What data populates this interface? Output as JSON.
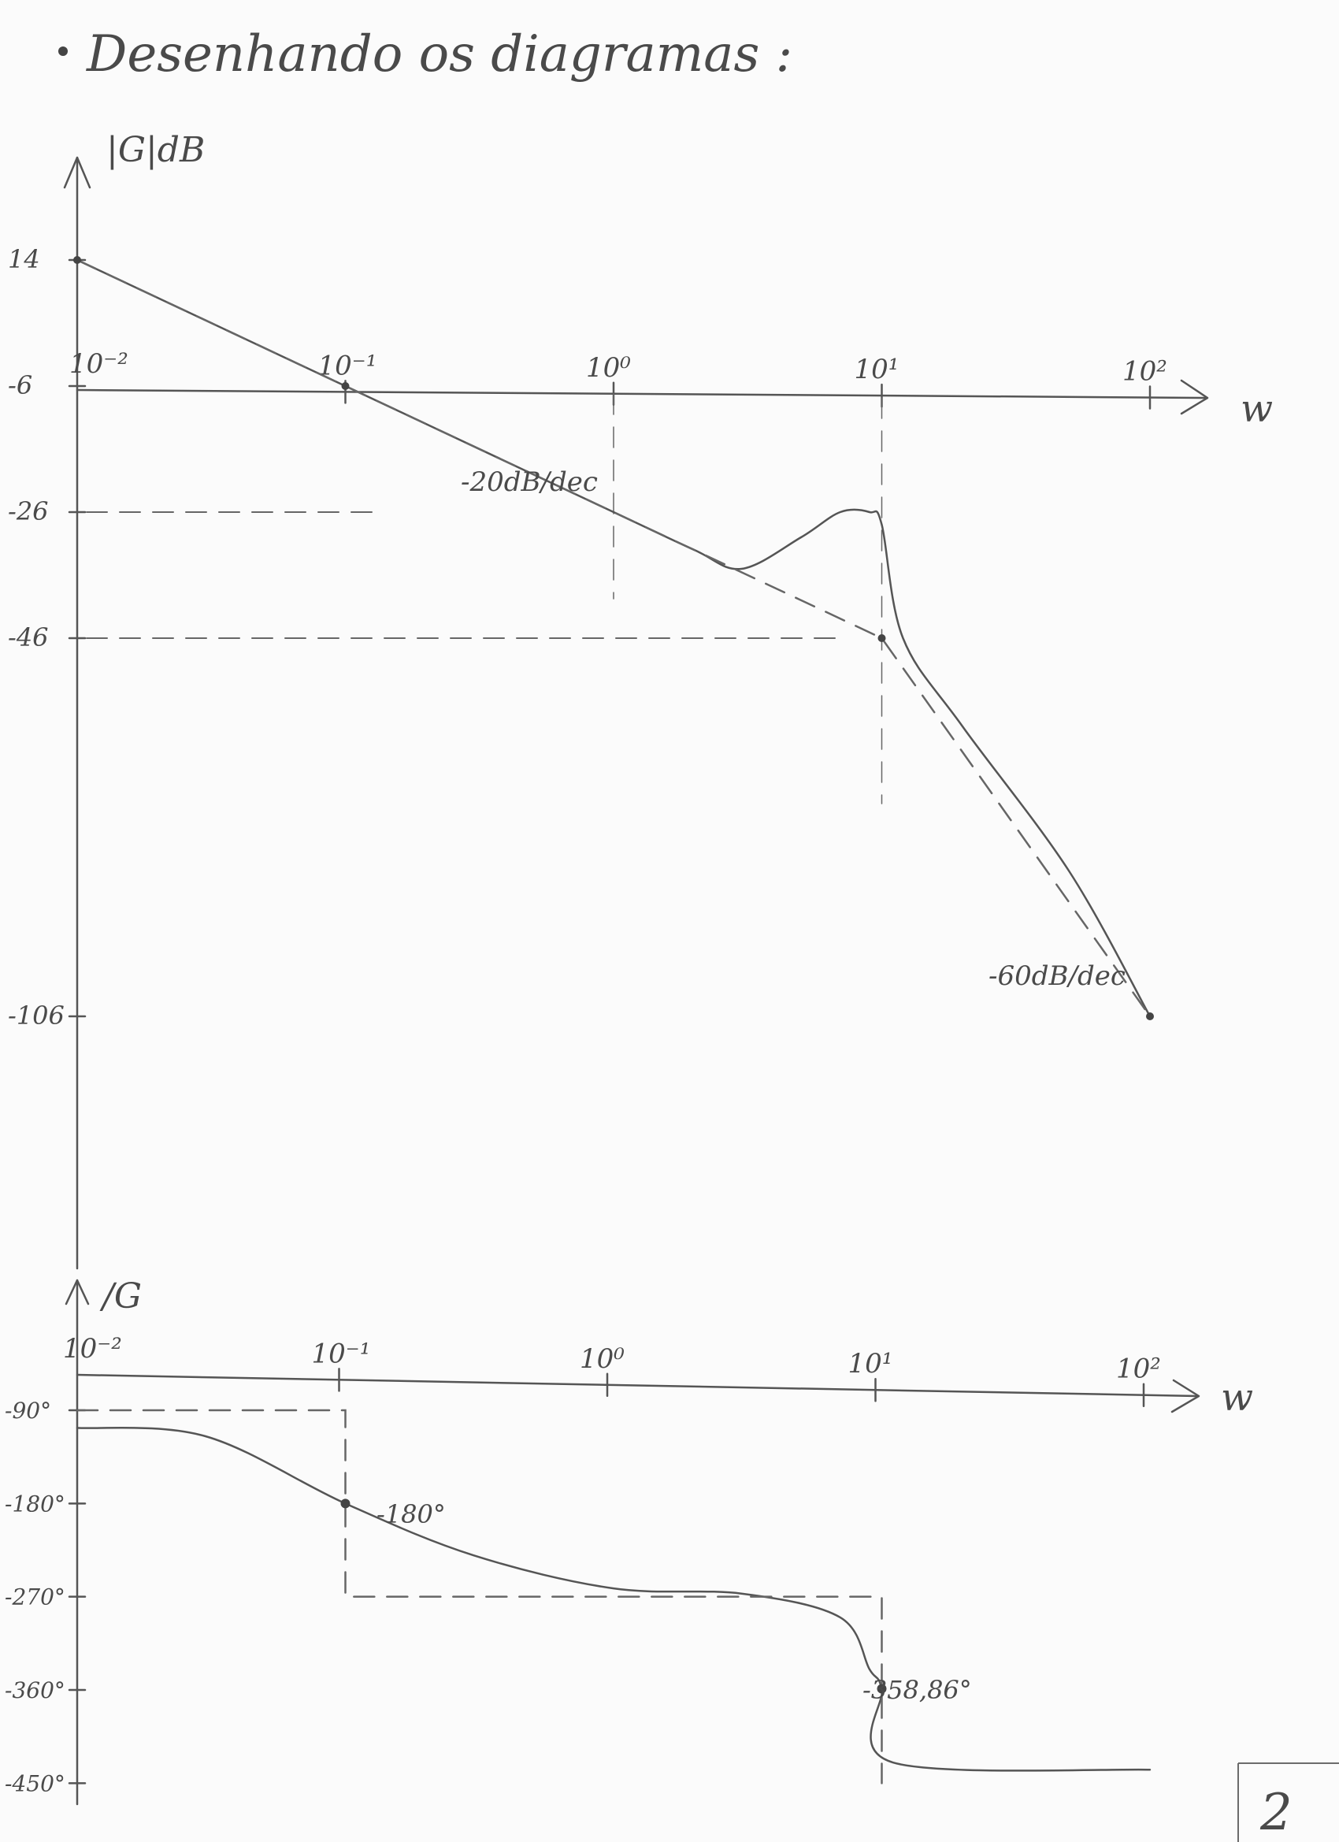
{
  "heading": "Desenhando os diagramas :",
  "page_number": "2",
  "magnitude_plot": {
    "y_axis_label": "|G|dB",
    "x_axis_label": "w",
    "x_tick_labels": [
      "10⁻²",
      "10⁻¹",
      "10⁰",
      "10¹",
      "10²"
    ],
    "y_tick_labels": [
      "14",
      "-6",
      "-26",
      "-46",
      "-106"
    ],
    "annotations": [
      "-20dB/dec",
      "-60dB/dec"
    ]
  },
  "phase_plot": {
    "y_axis_label": "/G",
    "x_axis_label": "w",
    "x_tick_labels": [
      "10⁻²",
      "10⁻¹",
      "10⁰",
      "10¹",
      "10²"
    ],
    "y_tick_labels": [
      "-90°",
      "-180°",
      "-270°",
      "-360°",
      "-450°"
    ],
    "annotations": [
      "-180°",
      "-358,86°"
    ]
  },
  "chart_data": [
    {
      "type": "line",
      "title": "",
      "xlabel": "w",
      "ylabel": "|G|dB",
      "x_scale": "log",
      "xlim": [
        0.01,
        100
      ],
      "yticks": [
        14,
        -6,
        -26,
        -46,
        -106
      ],
      "series": [
        {
          "style": "solid",
          "x": [
            0.01,
            0.1,
            1,
            2,
            3,
            5,
            7,
            9,
            10,
            12,
            20,
            50,
            100
          ],
          "y": [
            14,
            -6,
            -26,
            -32,
            -35,
            -30,
            -26,
            -26,
            -28,
            -46,
            -60,
            -83,
            -106
          ]
        },
        {
          "style": "dashed",
          "x": [
            0.01,
            0.1,
            1,
            10,
            100
          ],
          "y": [
            14,
            -6,
            -26,
            -46,
            -106
          ]
        }
      ]
    },
    {
      "type": "line",
      "title": "",
      "xlabel": "w",
      "ylabel": "/G",
      "x_scale": "log",
      "xlim": [
        0.01,
        100
      ],
      "yticks": [
        -90,
        -180,
        -270,
        -360,
        -450
      ],
      "series": [
        {
          "style": "solid",
          "x": [
            0.01,
            0.03,
            0.1,
            0.3,
            1,
            3,
            7,
            9,
            10,
            11,
            100
          ],
          "y": [
            -107,
            -115,
            -180,
            -230,
            -262,
            -267,
            -290,
            -340,
            -358.86,
            -430,
            -437
          ]
        },
        {
          "style": "dashed",
          "x": [
            0.01,
            0.1,
            0.1,
            10,
            10
          ],
          "y": [
            -90,
            -90,
            -270,
            -270,
            -450
          ]
        }
      ]
    }
  ]
}
